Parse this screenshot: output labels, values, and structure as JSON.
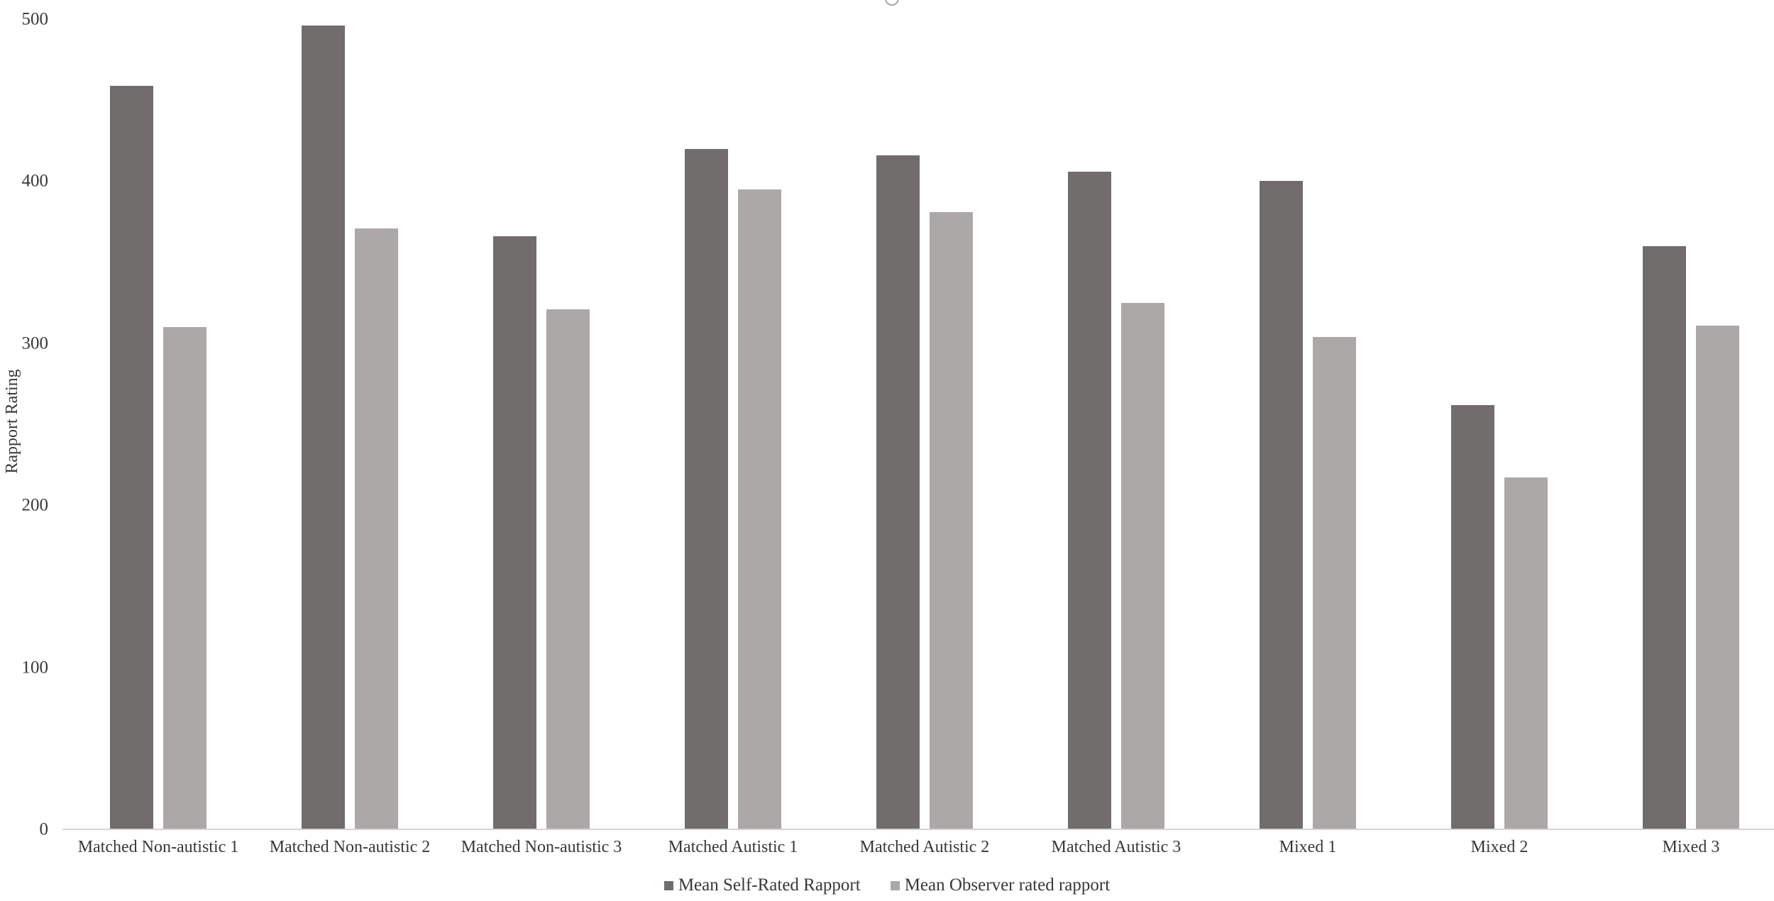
{
  "chart_data": {
    "type": "bar",
    "title": "",
    "xlabel": "",
    "ylabel": "Rapport Rating",
    "ylim": [
      0,
      500
    ],
    "yticks": [
      0,
      100,
      200,
      300,
      400,
      500
    ],
    "grid": false,
    "legend_position": "bottom",
    "categories": [
      "Matched Non-autistic 1",
      "Matched Non-autistic 2",
      "Matched Non-autistic 3",
      "Matched Autistic 1",
      "Matched Autistic 2",
      "Matched Autistic 3",
      "Mixed 1",
      "Mixed 2",
      "Mixed 3"
    ],
    "series": [
      {
        "name": "Mean Self-Rated Rapport",
        "color": "#716d6d",
        "values": [
          459,
          496,
          366,
          420,
          416,
          406,
          400,
          262,
          360
        ]
      },
      {
        "name": "Mean Observer rated rapport",
        "color": "#aca8a8",
        "values": [
          310,
          371,
          321,
          395,
          381,
          325,
          304,
          217,
          311
        ]
      }
    ]
  },
  "colors": {
    "background": "#ffffff",
    "text": "#3b3737",
    "axis_line": "#d6d3d3",
    "selection_handle": "#a9a9a9"
  }
}
